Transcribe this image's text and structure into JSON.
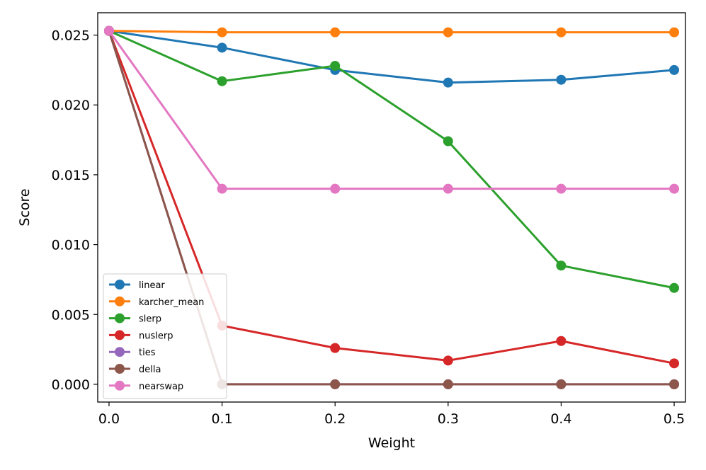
{
  "chart_data": {
    "type": "line",
    "title": "",
    "xlabel": "Weight",
    "ylabel": "Score",
    "x": [
      0.0,
      0.1,
      0.2,
      0.3,
      0.4,
      0.5
    ],
    "xlim": [
      -0.01,
      0.51
    ],
    "ylim": [
      -0.00127,
      0.0266
    ],
    "x_ticks": [
      0.0,
      0.1,
      0.2,
      0.3,
      0.4,
      0.5
    ],
    "x_tick_labels": [
      "0.0",
      "0.1",
      "0.2",
      "0.3",
      "0.4",
      "0.5"
    ],
    "y_ticks": [
      0.0,
      0.005,
      0.01,
      0.015,
      0.02,
      0.025
    ],
    "y_tick_labels": [
      "0.000",
      "0.005",
      "0.010",
      "0.015",
      "0.020",
      "0.025"
    ],
    "grid": false,
    "legend_position": "lower-left",
    "series": [
      {
        "name": "linear",
        "color": "#1f77b4",
        "values": [
          0.0253,
          0.0241,
          0.0225,
          0.0216,
          0.0218,
          0.0225
        ]
      },
      {
        "name": "karcher_mean",
        "color": "#ff7f0e",
        "values": [
          0.0253,
          0.0252,
          0.0252,
          0.0252,
          0.0252,
          0.0252
        ]
      },
      {
        "name": "slerp",
        "color": "#2ca02c",
        "values": [
          0.0253,
          0.0217,
          0.0228,
          0.0174,
          0.0085,
          0.0069
        ]
      },
      {
        "name": "nuslerp",
        "color": "#d62728",
        "values": [
          0.0253,
          0.0042,
          0.0026,
          0.0017,
          0.0031,
          0.0015
        ]
      },
      {
        "name": "ties",
        "color": "#9467bd",
        "values": [
          0.0253,
          0.0,
          0.0,
          0.0,
          0.0,
          0.0
        ]
      },
      {
        "name": "della",
        "color": "#8c564b",
        "values": [
          0.0253,
          0.0,
          0.0,
          0.0,
          0.0,
          0.0
        ]
      },
      {
        "name": "nearswap",
        "color": "#e377c2",
        "values": [
          0.0253,
          0.014,
          0.014,
          0.014,
          0.014,
          0.014
        ]
      }
    ]
  }
}
